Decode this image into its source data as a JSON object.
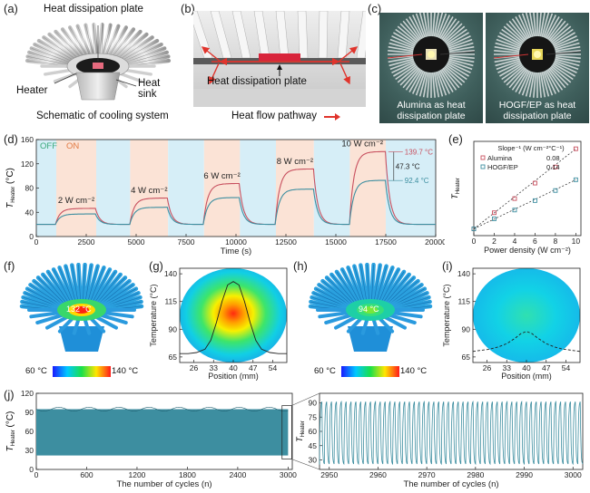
{
  "panels": {
    "a": {
      "label": "(a)",
      "top_label": "Heat dissipation plate",
      "heater_label": "Heater",
      "sink_label": "Heat\nsink",
      "caption": "Schematic of cooling system"
    },
    "b": {
      "label": "(b)",
      "plate_label": "Heat dissipation plate",
      "caption": "Heat flow pathway"
    },
    "c": {
      "label": "(c)",
      "left_caption": "Alumina as heat dissipation plate",
      "right_caption": "HOGF/EP as heat dissipation plate"
    },
    "d": {
      "label": "(d)"
    },
    "e": {
      "label": "(e)"
    },
    "f": {
      "label": "(f)",
      "hot_value": "132 °C",
      "scale_min": "60 °C",
      "scale_max": "140 °C"
    },
    "g": {
      "label": "(g)"
    },
    "h": {
      "label": "(h)",
      "hot_value": "94 °C",
      "scale_min": "60 °C",
      "scale_max": "140 °C"
    },
    "i": {
      "label": "(i)"
    },
    "j": {
      "label": "(j)"
    }
  },
  "colors": {
    "alumina": "#c8505f",
    "hogf": "#3d8ea0",
    "off_band": "#d6eef7",
    "on_band": "#fbe3d6",
    "arrow": "#e0342c"
  },
  "chart_data": [
    {
      "id": "d",
      "type": "line",
      "title": "",
      "xlabel": "Time (s)",
      "ylabel": "T",
      "ylabel_sub": "Heater",
      "ylabel_unit": "(°C)",
      "xlim": [
        0,
        20000
      ],
      "ylim": [
        0,
        160
      ],
      "xticks": [
        0,
        2500,
        5000,
        7500,
        10000,
        12500,
        15000,
        17500,
        20000
      ],
      "yticks": [
        0,
        40,
        80,
        120,
        160
      ],
      "off_label": "OFF",
      "on_label": "ON",
      "bands": [
        [
          0,
          1000,
          "off"
        ],
        [
          1000,
          3000,
          "on"
        ],
        [
          3000,
          4700,
          "off"
        ],
        [
          4700,
          6600,
          "on"
        ],
        [
          6600,
          8400,
          "off"
        ],
        [
          8400,
          10200,
          "on"
        ],
        [
          10200,
          12000,
          "off"
        ],
        [
          12000,
          13900,
          "on"
        ],
        [
          13900,
          15700,
          "off"
        ],
        [
          15700,
          17500,
          "on"
        ],
        [
          17500,
          20000,
          "off"
        ]
      ],
      "power_labels": [
        "2 W cm⁻²",
        "4 W cm⁻²",
        "6 W cm⁻²",
        "8 W cm⁻²",
        "10 W cm⁻²"
      ],
      "segments": [
        {
          "on": 1000,
          "off": 3000,
          "alumina": 46,
          "hogf": 37
        },
        {
          "on": 4700,
          "off": 6600,
          "alumina": 63,
          "hogf": 48
        },
        {
          "on": 8400,
          "off": 10200,
          "alumina": 87,
          "hogf": 64
        },
        {
          "on": 12000,
          "off": 13900,
          "alumina": 111,
          "hogf": 78
        },
        {
          "on": 15700,
          "off": 17500,
          "alumina": 139.7,
          "hogf": 92.4
        }
      ],
      "baseline": 20,
      "annotations": {
        "alumina_max": "139.7 °C",
        "hogf_max": "92.4 °C",
        "delta": "47.3 °C"
      }
    },
    {
      "id": "e",
      "type": "scatter",
      "xlabel": "Power density (W cm⁻²)",
      "ylabel": "T",
      "ylabel_sub": "Heater",
      "xlim": [
        0,
        10.5
      ],
      "ylim": [
        10,
        150
      ],
      "xticks": [
        0,
        2,
        4,
        6,
        8,
        10
      ],
      "legend_title": "Slope⁻¹ (W cm⁻²°C⁻¹)",
      "series": [
        {
          "name": "Alumina",
          "slope_label": "0.08",
          "x": [
            0,
            2,
            4,
            6,
            8,
            10
          ],
          "y": [
            20,
            44,
            65,
            88,
            112,
            139
          ]
        },
        {
          "name": "HOGF/EP",
          "slope_label": "0.14",
          "x": [
            0,
            2,
            4,
            6,
            8,
            10
          ],
          "y": [
            20,
            35,
            48,
            62,
            77,
            93
          ]
        }
      ]
    },
    {
      "id": "g",
      "type": "line",
      "xlabel": "Position (mm)",
      "ylabel": "Temperature (°C)",
      "xlim": [
        21,
        59
      ],
      "ylim": [
        60,
        145
      ],
      "xticks": [
        26,
        33,
        40,
        47,
        54
      ],
      "yticks": [
        65,
        90,
        115,
        140
      ],
      "x": [
        21,
        24,
        27,
        30,
        32,
        34,
        36,
        38,
        40,
        42,
        44,
        46,
        48,
        50,
        53,
        56,
        59
      ],
      "y": [
        68,
        68,
        69,
        72,
        80,
        96,
        115,
        130,
        133,
        130,
        115,
        96,
        80,
        72,
        69,
        68,
        68
      ]
    },
    {
      "id": "i",
      "type": "line",
      "xlabel": "Position (mm)",
      "ylabel": "Temperature (°C)",
      "xlim": [
        21,
        59
      ],
      "ylim": [
        60,
        145
      ],
      "xticks": [
        26,
        33,
        40,
        47,
        54
      ],
      "yticks": [
        65,
        90,
        115,
        140
      ],
      "x": [
        21,
        24,
        27,
        30,
        33,
        36,
        38,
        40,
        42,
        44,
        47,
        50,
        53,
        56,
        59
      ],
      "y": [
        70,
        71,
        72,
        74,
        77,
        82,
        86,
        88,
        86,
        82,
        77,
        74,
        72,
        71,
        70
      ]
    },
    {
      "id": "j",
      "type": "line",
      "xlabel": "The number of cycles (n)",
      "ylabel": "T",
      "ylabel_sub": "Heater",
      "ylabel_unit": "(°C)",
      "left": {
        "xlim": [
          0,
          3050
        ],
        "ylim": [
          0,
          120
        ],
        "xticks": [
          0,
          600,
          1200,
          1800,
          2400,
          3000
        ],
        "yticks": [
          0,
          30,
          60,
          90,
          120
        ],
        "min": 22,
        "max": 95
      },
      "right": {
        "xlim": [
          2948,
          3002
        ],
        "ylim": [
          20,
          100
        ],
        "xticks": [
          2950,
          2960,
          2970,
          2980,
          2990,
          3000
        ],
        "yticks": [
          30,
          45,
          60,
          75,
          90
        ],
        "min": 25,
        "max": 92
      }
    }
  ]
}
